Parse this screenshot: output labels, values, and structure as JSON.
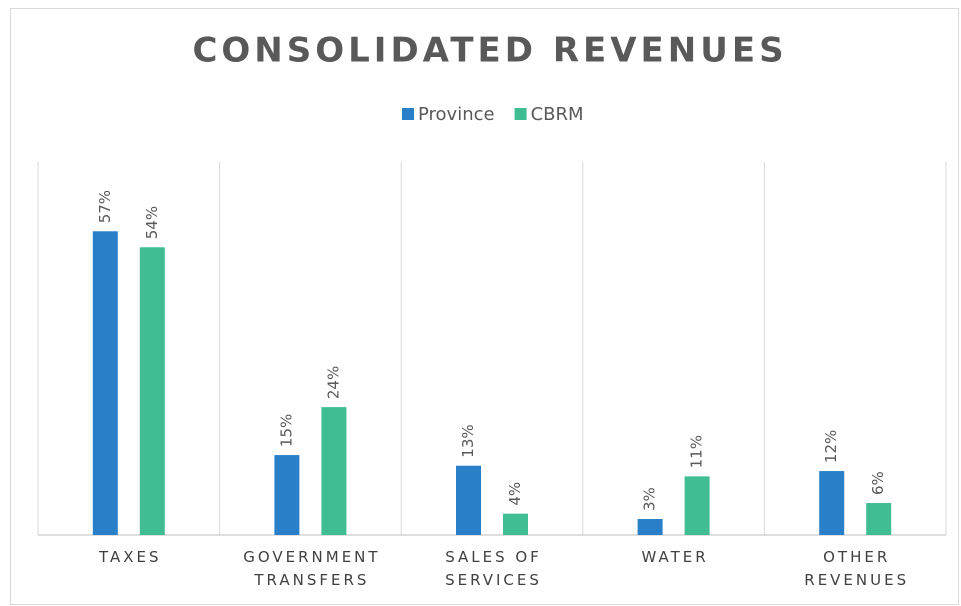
{
  "chart_data": {
    "type": "bar",
    "title": "CONSOLIDATED REVENUES",
    "categories": [
      "TAXES",
      "GOVERNMENT TRANSFERS",
      "SALES OF SERVICES",
      "WATER",
      "OTHER REVENUES"
    ],
    "series": [
      {
        "name": "Province",
        "color": "#2a7fc9",
        "values": [
          57,
          15,
          13,
          3,
          12
        ],
        "value_labels": [
          "57%",
          "15%",
          "13%",
          "3%",
          "12%"
        ]
      },
      {
        "name": "CBRM",
        "color": "#40bd93",
        "values": [
          54,
          24,
          4,
          11,
          6
        ],
        "value_labels": [
          "54%",
          "24%",
          "4%",
          "11%",
          "6%"
        ]
      }
    ],
    "ylim": [
      0,
      70
    ],
    "legend": "top"
  }
}
